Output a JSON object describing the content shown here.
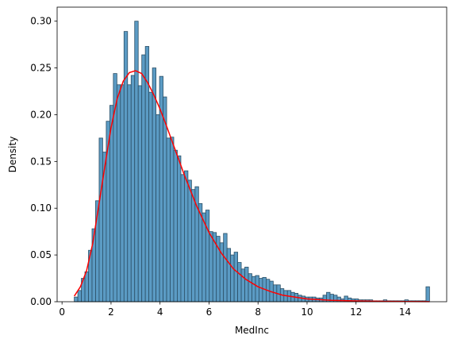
{
  "chart_data": {
    "type": "histogram",
    "xlabel": "MedInc",
    "ylabel": "Density",
    "xlim": [
      -0.2,
      15.7
    ],
    "ylim": [
      0,
      0.315
    ],
    "xticks": [
      0,
      2,
      4,
      6,
      8,
      10,
      12,
      14
    ],
    "xtick_labels": [
      "0",
      "2",
      "4",
      "6",
      "8",
      "10",
      "12",
      "14"
    ],
    "yticks": [
      0.0,
      0.05,
      0.1,
      0.15,
      0.2,
      0.25,
      0.3
    ],
    "ytick_labels": [
      "0.00",
      "0.05",
      "0.10",
      "0.15",
      "0.20",
      "0.25",
      "0.30"
    ],
    "bins": {
      "start": 0.5,
      "width": 0.145,
      "density": [
        0.005,
        0.012,
        0.025,
        0.032,
        0.055,
        0.078,
        0.108,
        0.175,
        0.16,
        0.193,
        0.21,
        0.244,
        0.232,
        0.232,
        0.289,
        0.232,
        0.242,
        0.3,
        0.231,
        0.264,
        0.273,
        0.224,
        0.25,
        0.2,
        0.241,
        0.219,
        0.175,
        0.176,
        0.162,
        0.156,
        0.136,
        0.14,
        0.13,
        0.12,
        0.123,
        0.105,
        0.095,
        0.098,
        0.075,
        0.074,
        0.07,
        0.063,
        0.073,
        0.057,
        0.05,
        0.053,
        0.042,
        0.035,
        0.037,
        0.03,
        0.027,
        0.028,
        0.025,
        0.026,
        0.024,
        0.022,
        0.018,
        0.018,
        0.014,
        0.012,
        0.012,
        0.01,
        0.009,
        0.007,
        0.006,
        0.005,
        0.005,
        0.005,
        0.004,
        0.004,
        0.007,
        0.01,
        0.008,
        0.007,
        0.005,
        0.003,
        0.006,
        0.004,
        0.003,
        0.003,
        0.002,
        0.002,
        0.002,
        0.002,
        0.001,
        0.001,
        0.001,
        0.002,
        0.001,
        0.001,
        0.001,
        0.001,
        0.001,
        0.002,
        0.001,
        0.001,
        0.001,
        0.001,
        0.001,
        0.016
      ],
      "fill": "#5b9bc4",
      "edge": "#2b4f66"
    },
    "density_curve": {
      "color": "#ff0000",
      "x": [
        0.5,
        0.75,
        1.0,
        1.25,
        1.5,
        1.75,
        2.0,
        2.25,
        2.5,
        2.75,
        3.0,
        3.25,
        3.5,
        3.75,
        4.0,
        4.25,
        4.5,
        4.75,
        5.0,
        5.5,
        6.0,
        6.5,
        7.0,
        7.5,
        8.0,
        8.5,
        9.0,
        9.5,
        10.0,
        11.0,
        12.0,
        13.0,
        14.0,
        15.0
      ],
      "y": [
        0.006,
        0.016,
        0.033,
        0.062,
        0.103,
        0.145,
        0.186,
        0.217,
        0.236,
        0.245,
        0.247,
        0.244,
        0.234,
        0.221,
        0.206,
        0.189,
        0.171,
        0.153,
        0.135,
        0.102,
        0.074,
        0.052,
        0.035,
        0.024,
        0.016,
        0.011,
        0.007,
        0.005,
        0.003,
        0.0015,
        0.0008,
        0.0004,
        0.0002,
        0.0001
      ]
    }
  }
}
